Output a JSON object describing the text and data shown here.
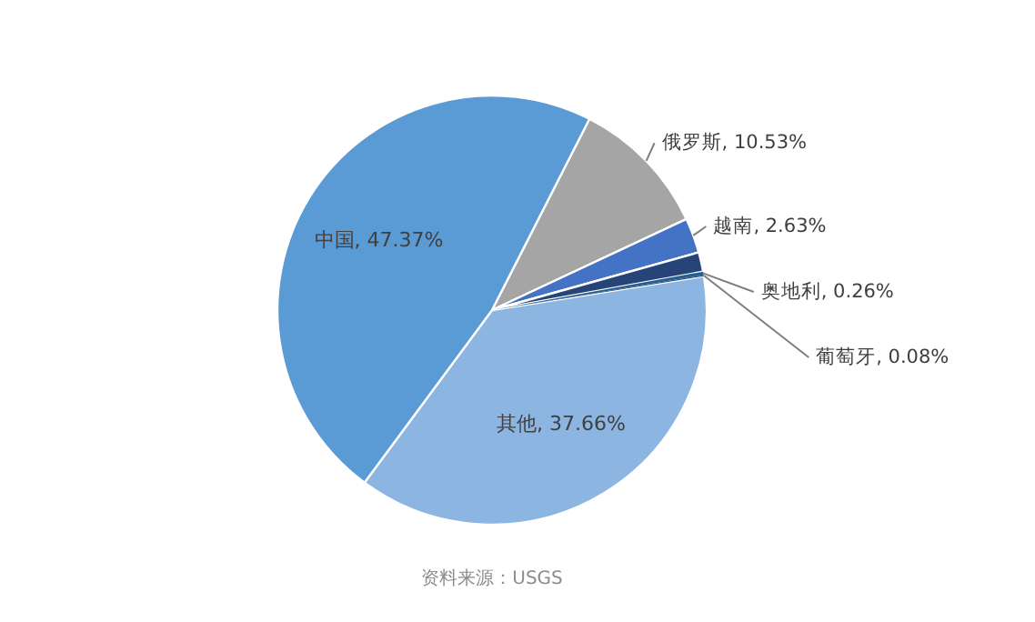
{
  "chart_data": {
    "type": "pie",
    "categories": [
      "俄罗斯",
      "越南",
      null,
      "奥地利",
      "葡萄牙",
      "其他",
      "中国"
    ],
    "values": [
      10.53,
      2.63,
      1.47,
      0.26,
      0.08,
      37.66,
      47.37
    ],
    "colors": [
      "#a5a5a5",
      "#4472c4",
      "#264478",
      "#255e91",
      "#1f4e79",
      "#8cb5e1",
      "#5b9bd5"
    ],
    "data_labels": true,
    "value_labels": [
      "10.53%",
      "2.63%",
      null,
      "0.26%",
      "0.08%",
      "37.66%",
      "47.37%"
    ],
    "annotations": [
      "资料来源：USGS"
    ]
  }
}
